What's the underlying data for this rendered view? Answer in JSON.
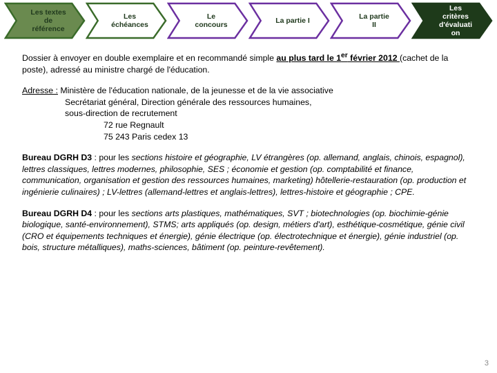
{
  "nav": {
    "items": [
      {
        "label": "Les textes\nde\nréférence",
        "fill": "#6a8a4f",
        "stroke": "#3a6b2a",
        "text": "dark"
      },
      {
        "label": "Les\néchéances",
        "fill": "#ffffff",
        "stroke": "#3a6b2a",
        "text": "dark"
      },
      {
        "label": "Le\nconcours",
        "fill": "#ffffff",
        "stroke": "#6b2fa0",
        "text": "dark"
      },
      {
        "label": "La partie I",
        "fill": "#ffffff",
        "stroke": "#6b2fa0",
        "text": "dark"
      },
      {
        "label": "La partie\nII",
        "fill": "#ffffff",
        "stroke": "#6b2fa0",
        "text": "dark"
      },
      {
        "label": "Les\ncritères\nd'évaluati\non",
        "fill": "#1e3a1a",
        "stroke": "#1e3a1a",
        "text": "light"
      }
    ]
  },
  "body": {
    "p1a": "Dossier à envoyer en double exemplaire et en recommandé simple ",
    "p1b": "au plus tard le 1",
    "p1sup": "er",
    "p1c": " février 2012 ",
    "p1d": "(cachet de la poste), adressé au ministre chargé de l'éducation.",
    "p2a": "Adresse :",
    "p2b": " Ministère de l'éducation nationale, de la jeunesse et de la vie associative",
    "p2c": "Secrétariat général, Direction générale des ressources humaines,",
    "p2d": "sous-direction de recrutement",
    "p2e": "72 rue Regnault",
    "p2f": "75 243 Paris cedex 13",
    "p3a": "Bureau DGRH D3",
    "p3b": " : pour les ",
    "p3c": "sections histoire et géographie, LV étrangères (op. allemand, anglais, chinois, espagnol), lettres classiques, lettres modernes, philosophie, SES ; économie et gestion (op. comptabilité et finance, communication, organisation et gestion des ressources humaines, marketing) hôtellerie-restauration (op. production et ingénierie culinaires) ; LV-lettres (allemand-lettres et anglais-lettres), lettres-histoire et géographie ; CPE.",
    "p4a": "Bureau DGRH D4",
    "p4b": " : pour les ",
    "p4c": "sections arts plastiques, mathématiques, SVT ; biotechnologies (op. biochimie-génie biologique, santé-environnement), STMS; arts appliqués (op. design, métiers d'art), esthétique-cosmétique, génie civil (CRO et équipements techniques et énergie), génie électrique (op. électrotechnique et énergie), génie industriel (op. bois, structure métalliques), maths-sciences, bâtiment (op. peinture-revêtement)."
  },
  "page_number": "3"
}
